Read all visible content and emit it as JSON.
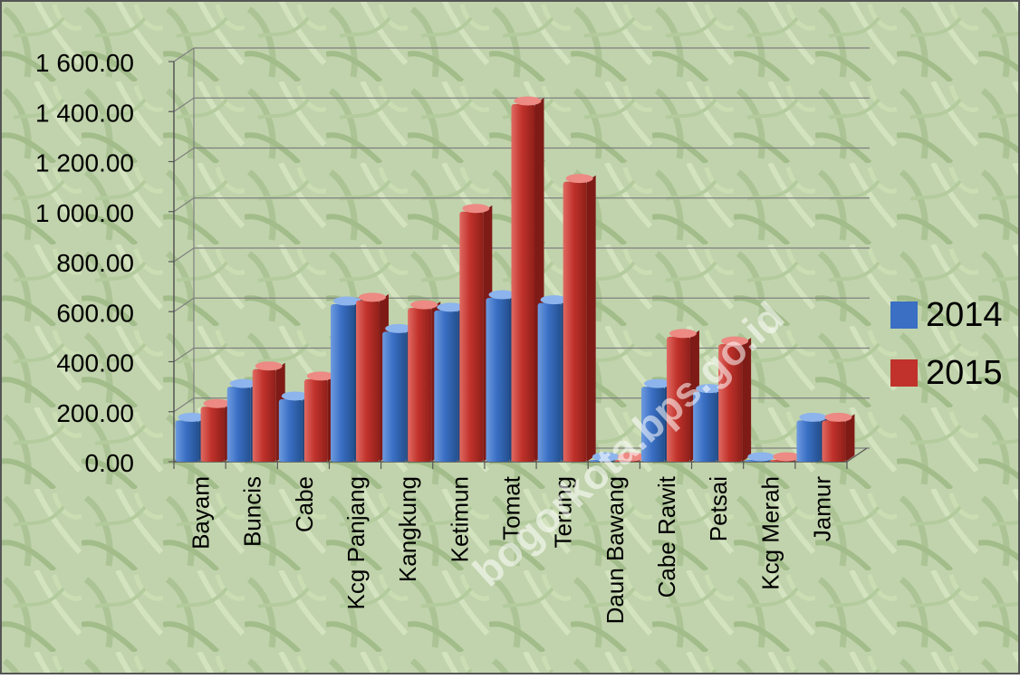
{
  "watermark_text": "bogorkota.bps.go.id",
  "chart_data": {
    "type": "bar",
    "title": "",
    "xlabel": "",
    "ylabel": "",
    "ylim": [
      0,
      1600
    ],
    "yticks": [
      "0.00",
      "200.00",
      "400.00",
      "600.00",
      "800.00",
      "1 000.00",
      "1 200.00",
      "1 400.00",
      "1 600.00"
    ],
    "grid": true,
    "legend_position": "right",
    "categories": [
      "Bayam",
      "Buncis",
      "Cabe",
      "Kcg Panjang",
      "Kangkung",
      "Ketimun",
      "Tomat",
      "Terung",
      "Daun Bawang",
      "Cabe Rawit",
      "Petsai",
      "Kcg Merah",
      "Jamur"
    ],
    "series": [
      {
        "name": "2014",
        "color": "#3a6fc4",
        "values": [
          165,
          300,
          250,
          630,
          520,
          605,
          655,
          635,
          5,
          300,
          280,
          5,
          165
        ]
      },
      {
        "name": "2015",
        "color": "#c0322b",
        "values": [
          220,
          370,
          330,
          645,
          615,
          1000,
          1430,
          1120,
          5,
          500,
          470,
          5,
          165
        ]
      }
    ]
  }
}
